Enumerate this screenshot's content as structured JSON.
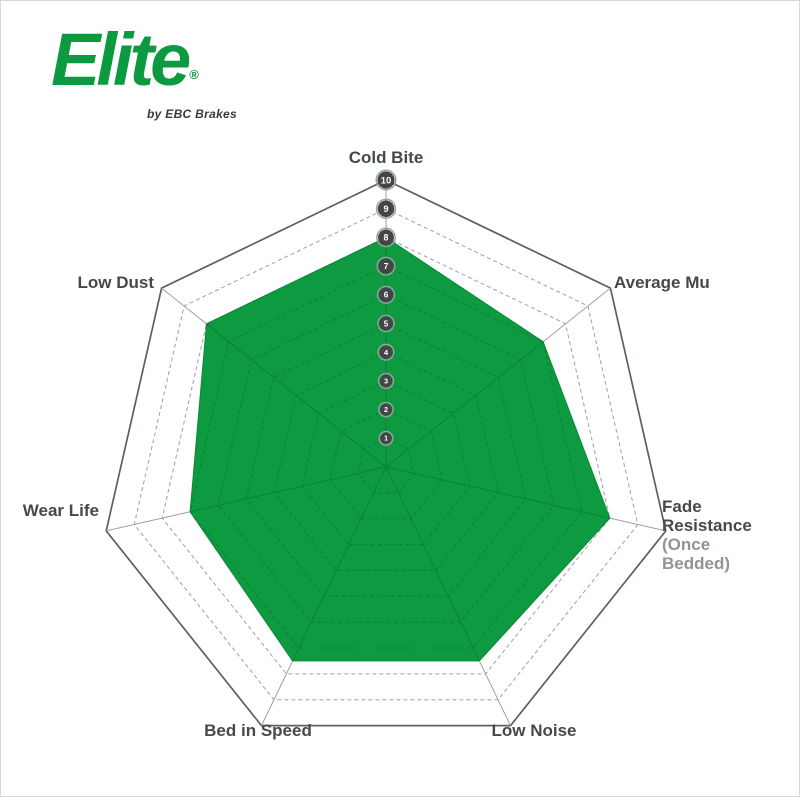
{
  "page": {
    "background": "#ffffff",
    "border_color": "#d8d8d8"
  },
  "logo": {
    "brand": "Elite",
    "registered_mark": "®",
    "tagline": "by EBC Brakes",
    "brand_color": "#0c9a40",
    "tagline_color": "#333d37"
  },
  "chart_data": {
    "type": "radar",
    "title": "",
    "axes": [
      "Cold Bite",
      "Average Mu",
      "Fade Resistance",
      "Low Noise",
      "Bed in Speed",
      "Wear Life",
      "Low Dust"
    ],
    "axis_sublabels": [
      "",
      "",
      "(Once Bedded)",
      "",
      "",
      "",
      ""
    ],
    "series": [
      {
        "name": "Elite",
        "values": [
          8,
          7,
          8,
          7.5,
          7.5,
          7,
          8
        ]
      }
    ],
    "scale": {
      "min": 0,
      "max": 10,
      "ticks": [
        1,
        2,
        3,
        4,
        5,
        6,
        7,
        8,
        9,
        10
      ]
    },
    "grid": {
      "rings": 10,
      "outer_style": "solid",
      "inner_style": "dashed",
      "spokes": true,
      "legend": "none"
    },
    "colors": {
      "fill": "#0e9a40",
      "fill_edge": "#0a8a38",
      "grid_outer": "#5b6064",
      "grid_inner": "#9ba1a4",
      "grid_inside_fill": "#0d7e34",
      "badge_fill": "#434648",
      "badge_ring": "#9b9fa1",
      "badge_text": "#ffffff",
      "label_color": "#45494c",
      "sublabel_color": "#8f9497"
    }
  }
}
